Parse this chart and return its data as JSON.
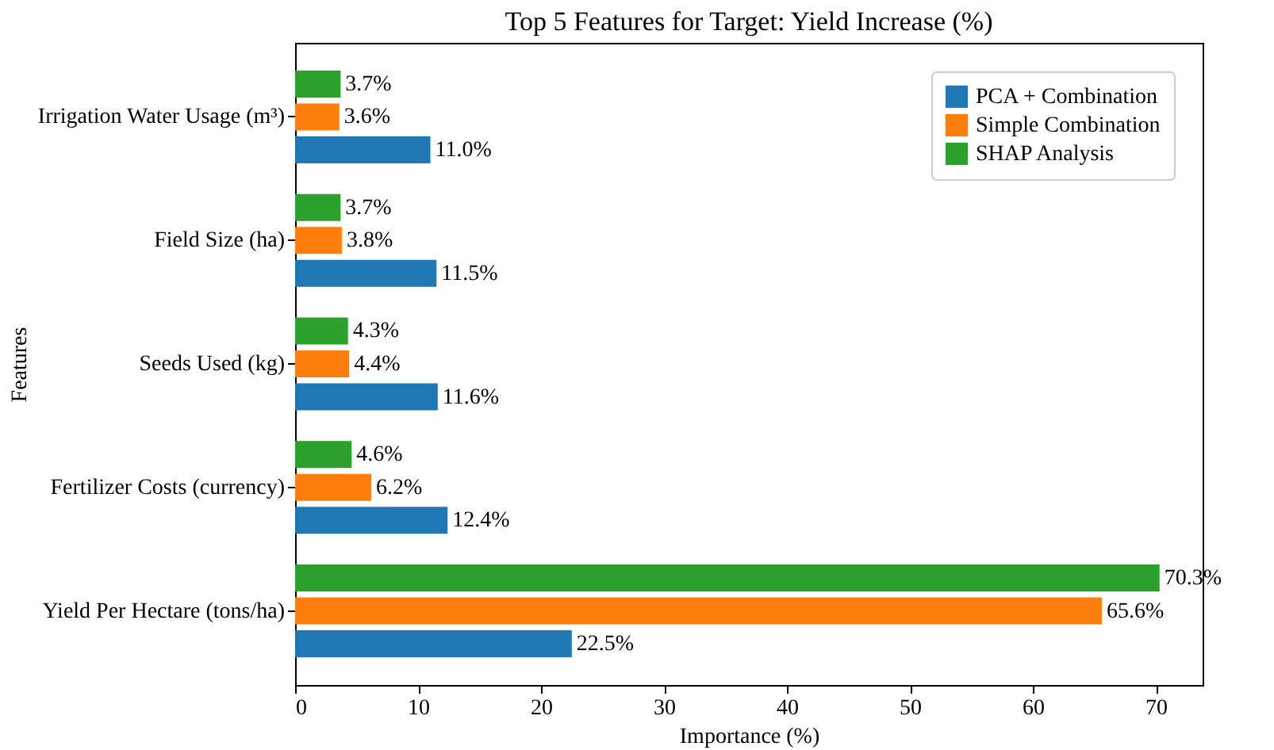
{
  "chart_data": {
    "type": "bar",
    "orientation": "horizontal",
    "title": "Top 5 Features for Target: Yield Increase (%)",
    "xlabel": "Importance (%)",
    "ylabel": "Features",
    "categories": [
      "Irrigation Water Usage (m³)",
      "Field Size (ha)",
      "Seeds Used (kg)",
      "Fertilizer Costs (currency)",
      "Yield Per Hectare (tons/ha)"
    ],
    "series": [
      {
        "name": "PCA + Combination",
        "color": "#1f77b4",
        "values": [
          11.0,
          11.5,
          11.6,
          12.4,
          22.5
        ],
        "value_labels": [
          "11.0%",
          "11.5%",
          "11.6%",
          "12.4%",
          "22.5%"
        ]
      },
      {
        "name": "Simple Combination",
        "color": "#ff7f0e",
        "values": [
          3.6,
          3.8,
          4.4,
          6.2,
          65.6
        ],
        "value_labels": [
          "3.6%",
          "3.8%",
          "4.4%",
          "6.2%",
          "65.6%"
        ]
      },
      {
        "name": "SHAP Analysis",
        "color": "#2ca02c",
        "values": [
          3.7,
          3.7,
          4.3,
          4.6,
          70.3
        ],
        "value_labels": [
          "3.7%",
          "3.7%",
          "4.3%",
          "4.6%",
          "70.3%"
        ]
      }
    ],
    "xlim": [
      0,
      73.8
    ],
    "xticks": [
      0,
      10,
      20,
      30,
      40,
      50,
      60,
      70
    ],
    "grid": false,
    "legend": "top right"
  }
}
